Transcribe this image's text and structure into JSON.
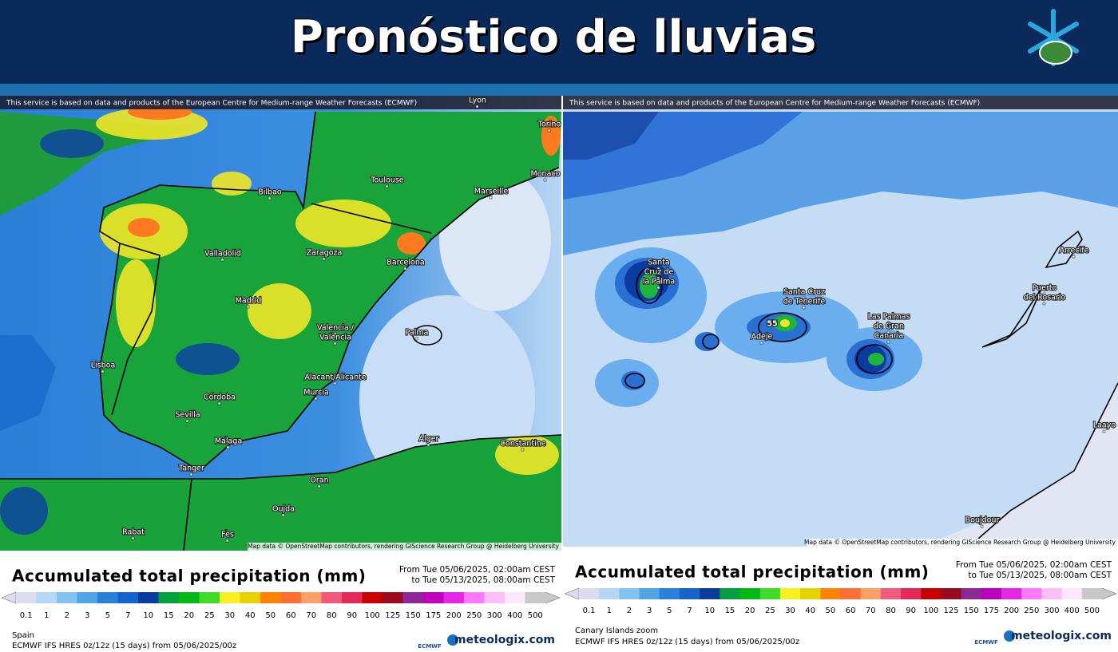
{
  "header": {
    "title": "Pronóstico de lluvias"
  },
  "scale": {
    "labels": [
      "0.1",
      "1",
      "2",
      "3",
      "5",
      "7",
      "10",
      "15",
      "20",
      "25",
      "30",
      "40",
      "50",
      "60",
      "70",
      "80",
      "90",
      "100",
      "125",
      "150",
      "175",
      "200",
      "250",
      "300",
      "400",
      "500"
    ],
    "colors": [
      "#dcdcf0",
      "#b4d7f5",
      "#82c3f0",
      "#50a5e6",
      "#2882dc",
      "#1464cc",
      "#0a3ca0",
      "#00a03c",
      "#00b914",
      "#3cdc28",
      "#f5f01e",
      "#e6d200",
      "#ff8200",
      "#ff6e32",
      "#ffa064",
      "#f05a7d",
      "#e6285a",
      "#c80000",
      "#9b0a1e",
      "#8c2896",
      "#be00be",
      "#e628e6",
      "#ff78ff",
      "#ffbef5",
      "#ffe6ff",
      "#c8c8c8"
    ]
  },
  "maps": [
    {
      "notice": "This service is based on data and products of the European Centre for Medium-range Weather Forecasts (ECMWF)",
      "attribution": "Map data © OpenStreetMap contributors, rendering GIScience Research Group @ Heidelberg University",
      "places": [
        "Lyon",
        "Torino",
        "Monaco",
        "Toulouse",
        "Marseille",
        "Bilbao",
        "Valladolid",
        "Zaragoza",
        "Barcelona",
        "Madrid",
        "Valencia /",
        "València",
        "Palma",
        "Lisboa",
        "Alacant/Alicante",
        "Murcia",
        "Córdoba",
        "Sevilla",
        "Málaga",
        "Tanger",
        "Alger",
        "Constantine",
        "Oran",
        "Oujda",
        "Rabat",
        "Fès"
      ],
      "legend_title": "Accumulated total precipitation (mm)",
      "period": [
        "From Tue 05/06/2025, 02:00am CEST",
        "to Tue 05/13/2025, 08:00am CEST"
      ],
      "region": "Spain",
      "model": "ECMWF IFS HRES 0z/12z (15 days) from 05/06/2025/00z",
      "ecmwf": "ECMWF",
      "brand": "meteologix.com"
    },
    {
      "notice": "This service is based on data and products of the European Centre for Medium-range Weather Forecasts (ECMWF)",
      "attribution": "Map data © OpenStreetMap contributors, rendering GIScience Research Group @ Heidelberg University",
      "places": [
        "Santa",
        "Cruz de",
        "la Palma",
        "Santa Cruz",
        "de Tenerife",
        "55",
        "Adeje",
        "Las Palmas",
        "de Gran",
        "Canaria",
        "Arrecife",
        "Puerto",
        "del Rosario",
        "Boujdour",
        "Laayo"
      ],
      "legend_title": "Accumulated total precipitation (mm)",
      "period": [
        "From Tue 05/06/2025, 02:00am CEST",
        "to Tue 05/13/2025, 08:00am CEST"
      ],
      "region": "Canary Islands zoom",
      "model": "ECMWF IFS HRES 0z/12z (15 days) from 05/06/2025/00z",
      "ecmwf": "ECMWF",
      "brand": "meteologix.com"
    }
  ]
}
